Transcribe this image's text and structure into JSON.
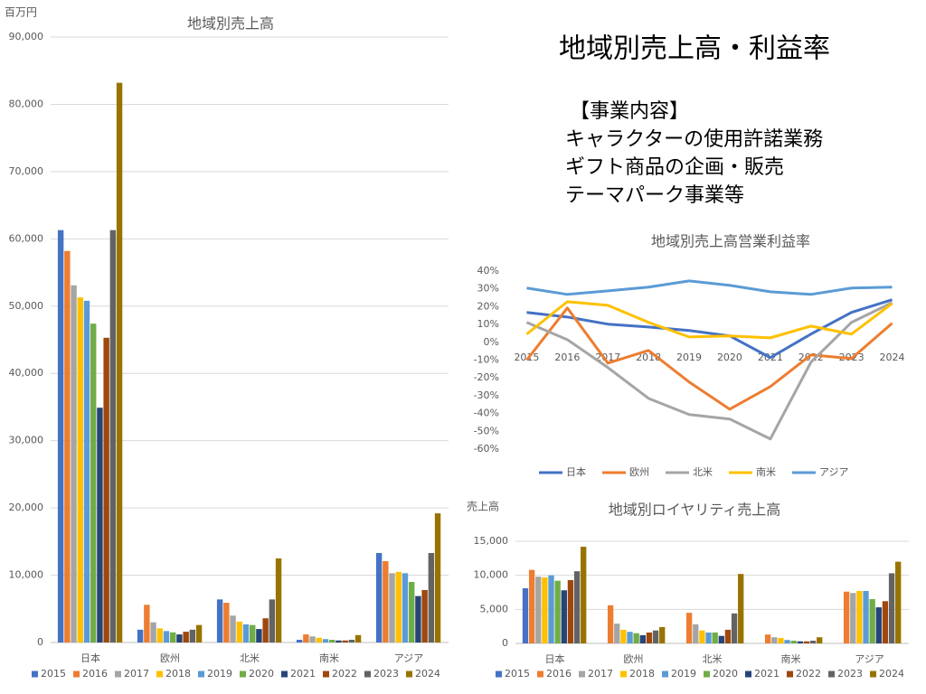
{
  "slide": {
    "title": "地域別売上高・利益率",
    "description": [
      "【事業内容】",
      "キャラクターの使用許諾業務",
      "ギフト商品の企画・販売",
      "テーマパーク事業等"
    ]
  },
  "chart_data": [
    {
      "type": "bar",
      "title": "地域別売上高",
      "ylabel": "百万円",
      "grid": true,
      "legend": "bottom",
      "categories": [
        "日本",
        "欧州",
        "北米",
        "南米",
        "アジア"
      ],
      "ylim": [
        0,
        90000
      ],
      "yticks": [
        {
          "value": 0,
          "label": "0"
        },
        {
          "value": 10000,
          "label": "10,000"
        },
        {
          "value": 20000,
          "label": "20,000"
        },
        {
          "value": 30000,
          "label": "30,000"
        },
        {
          "value": 40000,
          "label": "40,000"
        },
        {
          "value": 50000,
          "label": "50,000"
        },
        {
          "value": 60000,
          "label": "60,000"
        },
        {
          "value": 70000,
          "label": "70,000"
        },
        {
          "value": 80000,
          "label": "80,000"
        },
        {
          "value": 90000,
          "label": "90,000"
        }
      ],
      "series": [
        {
          "name": "2015",
          "color": "#4472c4",
          "values": [
            61300,
            1900,
            6400,
            400,
            13300
          ]
        },
        {
          "name": "2016",
          "color": "#ed7d31",
          "values": [
            58200,
            5600,
            5900,
            1200,
            12100
          ]
        },
        {
          "name": "2017",
          "color": "#a5a5a5",
          "values": [
            53100,
            3000,
            4000,
            900,
            10300
          ]
        },
        {
          "name": "2018",
          "color": "#ffc000",
          "values": [
            51300,
            2100,
            3100,
            700,
            10500
          ]
        },
        {
          "name": "2019",
          "color": "#5b9bd5",
          "values": [
            50800,
            1700,
            2700,
            500,
            10300
          ]
        },
        {
          "name": "2020",
          "color": "#70ad47",
          "values": [
            47400,
            1500,
            2600,
            400,
            9000
          ]
        },
        {
          "name": "2021",
          "color": "#264478",
          "values": [
            34900,
            1200,
            2000,
            300,
            6900
          ]
        },
        {
          "name": "2022",
          "color": "#9e480e",
          "values": [
            45300,
            1600,
            3600,
            300,
            7800
          ]
        },
        {
          "name": "2023",
          "color": "#636363",
          "values": [
            61300,
            1900,
            6400,
            400,
            13300
          ]
        },
        {
          "name": "2024",
          "color": "#997300",
          "values": [
            83200,
            2600,
            12500,
            1100,
            19200
          ]
        }
      ]
    },
    {
      "type": "line",
      "title": "地域別売上高営業利益率",
      "grid": false,
      "legend": "bottom",
      "categories": [
        "2015",
        "2016",
        "2017",
        "2018",
        "2019",
        "2020",
        "2021",
        "2022",
        "2023",
        "2024"
      ],
      "ylim": [
        -60,
        40
      ],
      "yticks": [
        {
          "value": 40,
          "label": "40%"
        },
        {
          "value": 30,
          "label": "30%"
        },
        {
          "value": 20,
          "label": "20%"
        },
        {
          "value": 10,
          "label": "10%"
        },
        {
          "value": 0,
          "label": "0%"
        },
        {
          "value": -10,
          "label": "-10%"
        },
        {
          "value": -20,
          "label": "-20%"
        },
        {
          "value": -30,
          "label": "-30%"
        },
        {
          "value": -40,
          "label": "-40%"
        },
        {
          "value": -50,
          "label": "-50%"
        },
        {
          "value": -60,
          "label": "-60%"
        }
      ],
      "series": [
        {
          "name": "日本",
          "color": "#4472c4",
          "values": [
            16.8,
            14.2,
            10.2,
            8.6,
            6.6,
            3.6,
            -8.6,
            4.6,
            16.8,
            23.9
          ]
        },
        {
          "name": "欧州",
          "color": "#ed7d31",
          "values": [
            -10,
            19.3,
            -11.7,
            -4.6,
            -22.3,
            -37.6,
            -24.9,
            -7.1,
            -9.1,
            10.7
          ]
        },
        {
          "name": "北米",
          "color": "#a5a5a5",
          "values": [
            11.2,
            1.5,
            -14.2,
            -31.5,
            -40.6,
            -43.1,
            -54.3,
            -11.2,
            11.2,
            22.3
          ]
        },
        {
          "name": "南米",
          "color": "#ffc000",
          "values": [
            4.6,
            22.8,
            20.8,
            11.2,
            3.0,
            3.6,
            2.5,
            9.1,
            4.6,
            21.8
          ]
        },
        {
          "name": "アジア",
          "color": "#5b9bd5",
          "values": [
            30.5,
            26.9,
            28.9,
            31.0,
            34.5,
            32.0,
            28.4,
            26.9,
            30.5,
            31.0
          ]
        }
      ]
    },
    {
      "type": "bar",
      "title": "地域別ロイヤリティ売上高",
      "ylabel": "売上高",
      "grid": true,
      "legend": "bottom",
      "categories": [
        "日本",
        "欧州",
        "北米",
        "南米",
        "アジア"
      ],
      "ylim": [
        0,
        15000
      ],
      "yticks": [
        {
          "value": 0,
          "label": "0"
        },
        {
          "value": 5000,
          "label": "5,000"
        },
        {
          "value": 10000,
          "label": "10,000"
        },
        {
          "value": 15000,
          "label": "15,000"
        }
      ],
      "series": [
        {
          "name": "2015",
          "color": "#4472c4",
          "values": [
            8100,
            null,
            null,
            null,
            null
          ]
        },
        {
          "name": "2016",
          "color": "#ed7d31",
          "values": [
            10800,
            5600,
            4500,
            1300,
            7600
          ]
        },
        {
          "name": "2017",
          "color": "#a5a5a5",
          "values": [
            9800,
            2900,
            2800,
            900,
            7400
          ]
        },
        {
          "name": "2018",
          "color": "#ffc000",
          "values": [
            9700,
            2000,
            1900,
            800,
            7700
          ]
        },
        {
          "name": "2019",
          "color": "#5b9bd5",
          "values": [
            10000,
            1700,
            1600,
            500,
            7700
          ]
        },
        {
          "name": "2020",
          "color": "#70ad47",
          "values": [
            9200,
            1500,
            1600,
            400,
            6500
          ]
        },
        {
          "name": "2021",
          "color": "#264478",
          "values": [
            7800,
            1200,
            1100,
            300,
            5300
          ]
        },
        {
          "name": "2022",
          "color": "#9e480e",
          "values": [
            9300,
            1600,
            2000,
            300,
            6200
          ]
        },
        {
          "name": "2023",
          "color": "#636363",
          "values": [
            10600,
            1900,
            4400,
            400,
            10300
          ]
        },
        {
          "name": "2024",
          "color": "#997300",
          "values": [
            14200,
            2400,
            10200,
            900,
            12000
          ]
        }
      ]
    }
  ]
}
